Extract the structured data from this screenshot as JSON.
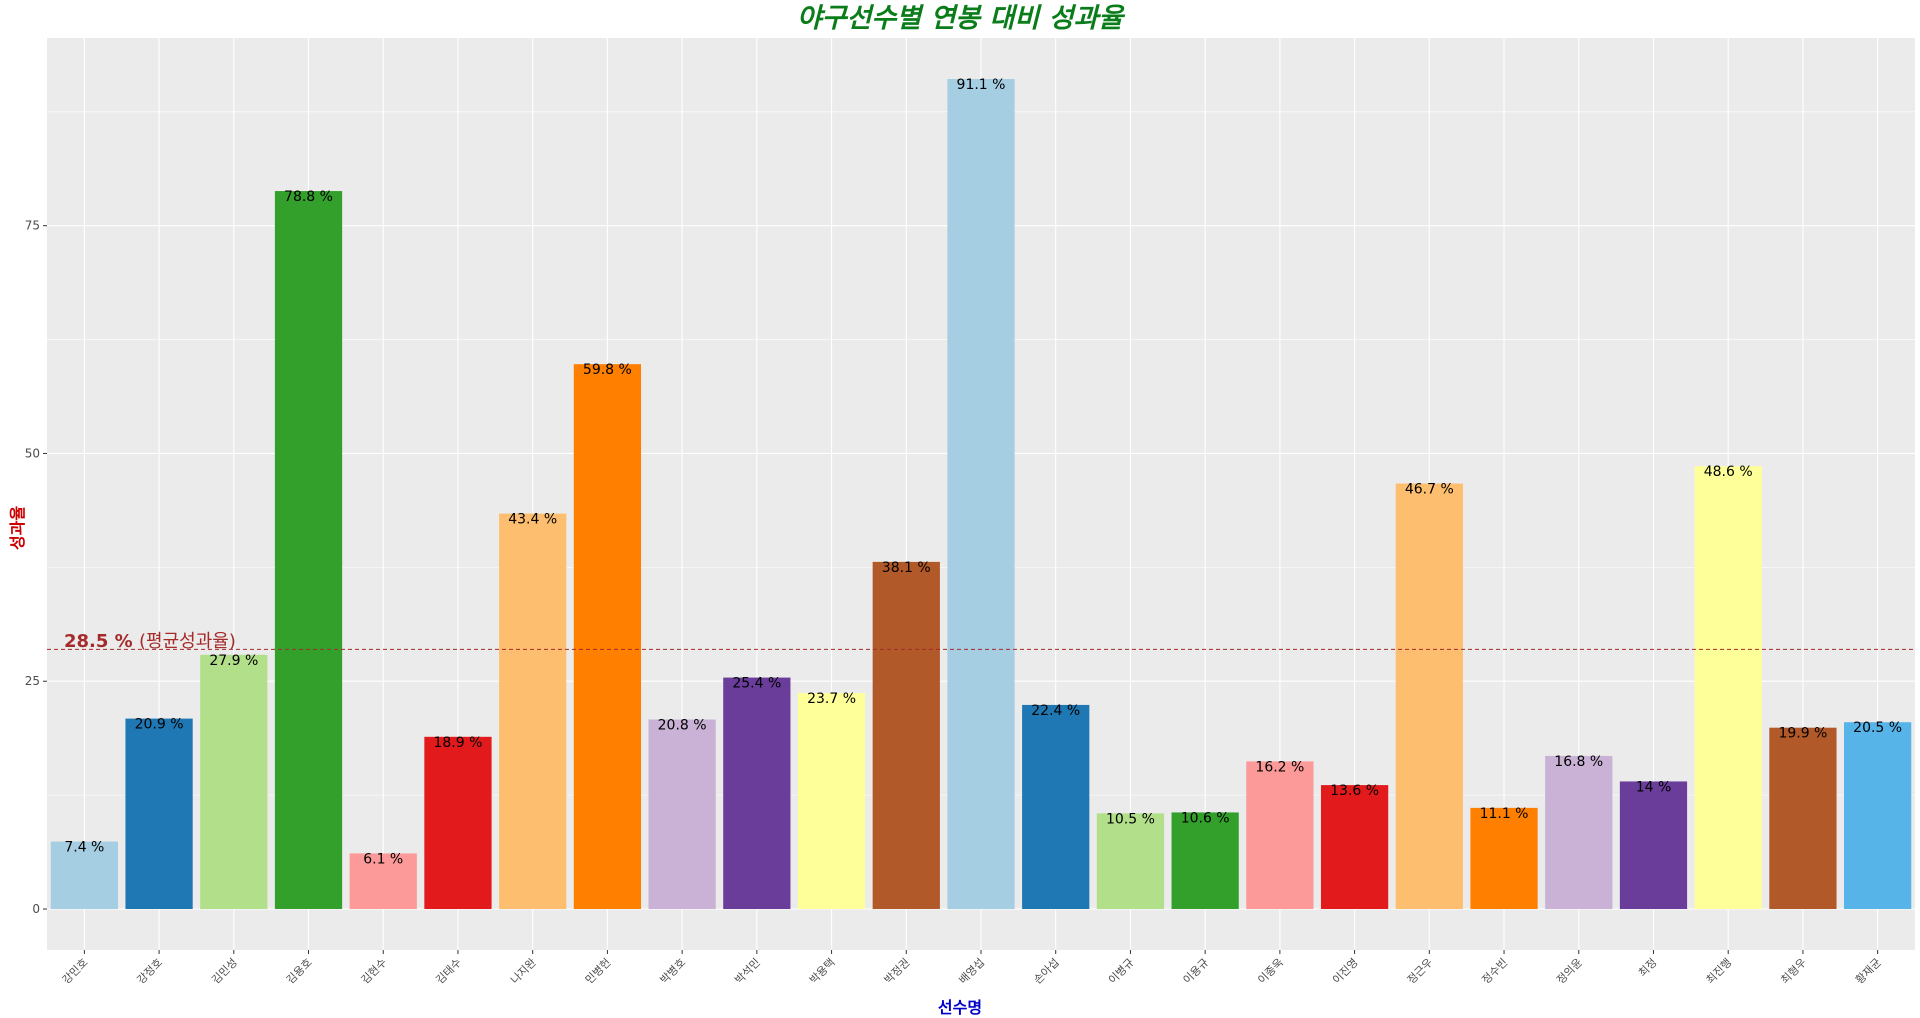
{
  "chart_data": {
    "type": "bar",
    "title": "야구선수별 연봉 대비 성과율",
    "xlabel": "선수명",
    "ylabel": "성과율",
    "categories": [
      "강민호",
      "강정호",
      "김민성",
      "김용호",
      "김현수",
      "김태수",
      "나지완",
      "민병헌",
      "박병호",
      "박석민",
      "박용택",
      "박정권",
      "배영섭",
      "손아섭",
      "이병규",
      "이용규",
      "이종욱",
      "이진영",
      "정근우",
      "정수빈",
      "정의윤",
      "최정",
      "최진행",
      "최형우",
      "황재균"
    ],
    "values": [
      7.4,
      20.9,
      27.9,
      78.8,
      6.1,
      18.9,
      43.4,
      59.8,
      20.8,
      25.4,
      23.7,
      38.1,
      91.1,
      22.4,
      10.5,
      10.6,
      16.2,
      13.6,
      46.7,
      11.1,
      16.8,
      14,
      48.6,
      19.9,
      20.5
    ],
    "value_labels": [
      "7.4 %",
      "20.9 %",
      "27.9 %",
      "78.8 %",
      "6.1 %",
      "18.9 %",
      "43.4 %",
      "59.8 %",
      "20.8 %",
      "25.4 %",
      "23.7 %",
      "38.1 %",
      "91.1 %",
      "22.4 %",
      "10.5 %",
      "10.6 %",
      "16.2 %",
      "13.6 %",
      "46.7 %",
      "11.1 %",
      "16.8 %",
      "14 %",
      "48.6 %",
      "19.9 %",
      "20.5 %"
    ],
    "colors": [
      "#a6cee3",
      "#1f78b4",
      "#b2df8a",
      "#33a02c",
      "#fb9a99",
      "#e31a1c",
      "#fdbf6f",
      "#ff7f00",
      "#cab2d6",
      "#6a3d9a",
      "#ffff99",
      "#b15928",
      "#a6cee3",
      "#1f78b4",
      "#b2df8a",
      "#33a02c",
      "#fb9a99",
      "#e31a1c",
      "#fdbf6f",
      "#ff7f00",
      "#cab2d6",
      "#6a3d9a",
      "#ffff99",
      "#b15928",
      "#56b4e9"
    ],
    "yticks": [
      0,
      25,
      50,
      75
    ],
    "ylim": [
      -4.5,
      95.6
    ],
    "grid": true,
    "reference_line": {
      "value": 28.5,
      "color": "#a52a2a",
      "style": "dashed"
    },
    "annotation": {
      "value_text": "28.5 %",
      "suffix_text": "(평균성과율)"
    }
  }
}
